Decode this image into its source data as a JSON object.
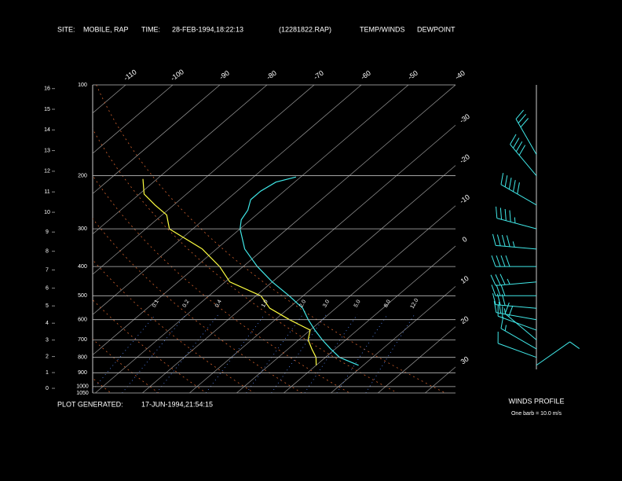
{
  "header": {
    "site_label": "SITE:",
    "site": "MOBILE, RAP",
    "time_label": "TIME:",
    "time": "28-FEB-1994,18:22:13",
    "file": "(12281822.RAP)"
  },
  "footer": {
    "generated_label": "PLOT GENERATED:",
    "generated": "17-JUN-1994,21:54:15"
  },
  "chart_data": {
    "type": "skewt",
    "ylim": [
      100,
      1050
    ],
    "pressure_ticks": [
      100,
      200,
      300,
      400,
      500,
      600,
      700,
      800,
      900,
      1000,
      1050
    ],
    "height_ticks": [
      0,
      1,
      2,
      3,
      4,
      5,
      6,
      7,
      8,
      9,
      10,
      11,
      12,
      13,
      14,
      15,
      16
    ],
    "temperature_ticks": [
      -110,
      -100,
      -90,
      -80,
      -70,
      -60,
      -50,
      -40,
      -30,
      -20,
      -10,
      0,
      10,
      20,
      30
    ],
    "series": [
      {
        "name": "TEMP/WINDS",
        "color": "#40e8e8",
        "pressure": [
          850,
          800,
          750,
          700,
          650,
          600,
          550,
          500,
          450,
          400,
          350,
          300,
          280,
          260,
          240,
          225,
          210,
          202
        ],
        "values": [
          9,
          3,
          -1,
          -5,
          -9,
          -13,
          -17,
          -23,
          -30,
          -37,
          -44,
          -50,
          -52,
          -53,
          -55,
          -55,
          -54,
          -51
        ]
      },
      {
        "name": "DEWPOINT",
        "color": "#ffff40",
        "pressure": [
          850,
          800,
          750,
          700,
          650,
          600,
          550,
          500,
          450,
          400,
          350,
          300,
          270,
          250,
          230,
          205
        ],
        "values": [
          0,
          -2,
          -5,
          -8,
          -10,
          -17,
          -24,
          -29,
          -39,
          -45,
          -53,
          -65,
          -69,
          -74,
          -79,
          -83
        ]
      }
    ],
    "mixing_ratio": {
      "color": "#5a8cff",
      "values": [
        0.1,
        0.2,
        0.4,
        1.0,
        2.0,
        3.0,
        5.0,
        8.0,
        12.0
      ],
      "value_labels": [
        "0.1",
        "0.2",
        "0.4",
        "1.0",
        "2.0",
        "3.0",
        "5.0",
        "8.0",
        "12.0"
      ]
    },
    "winds": {
      "title": "WINDS PROFILE",
      "note": "One barb = 10.0 m/s",
      "barb_speed": 10,
      "color": "#40e8e8",
      "pressure": [
        850,
        800,
        750,
        700,
        650,
        600,
        550,
        500,
        450,
        400,
        350,
        300,
        250,
        200,
        170
      ],
      "direction": [
        55,
        290,
        300,
        310,
        290,
        280,
        275,
        270,
        265,
        270,
        275,
        285,
        300,
        320,
        330
      ],
      "speed": [
        10,
        10,
        15,
        20,
        20,
        25,
        30,
        30,
        35,
        40,
        45,
        45,
        50,
        40,
        30
      ]
    }
  }
}
